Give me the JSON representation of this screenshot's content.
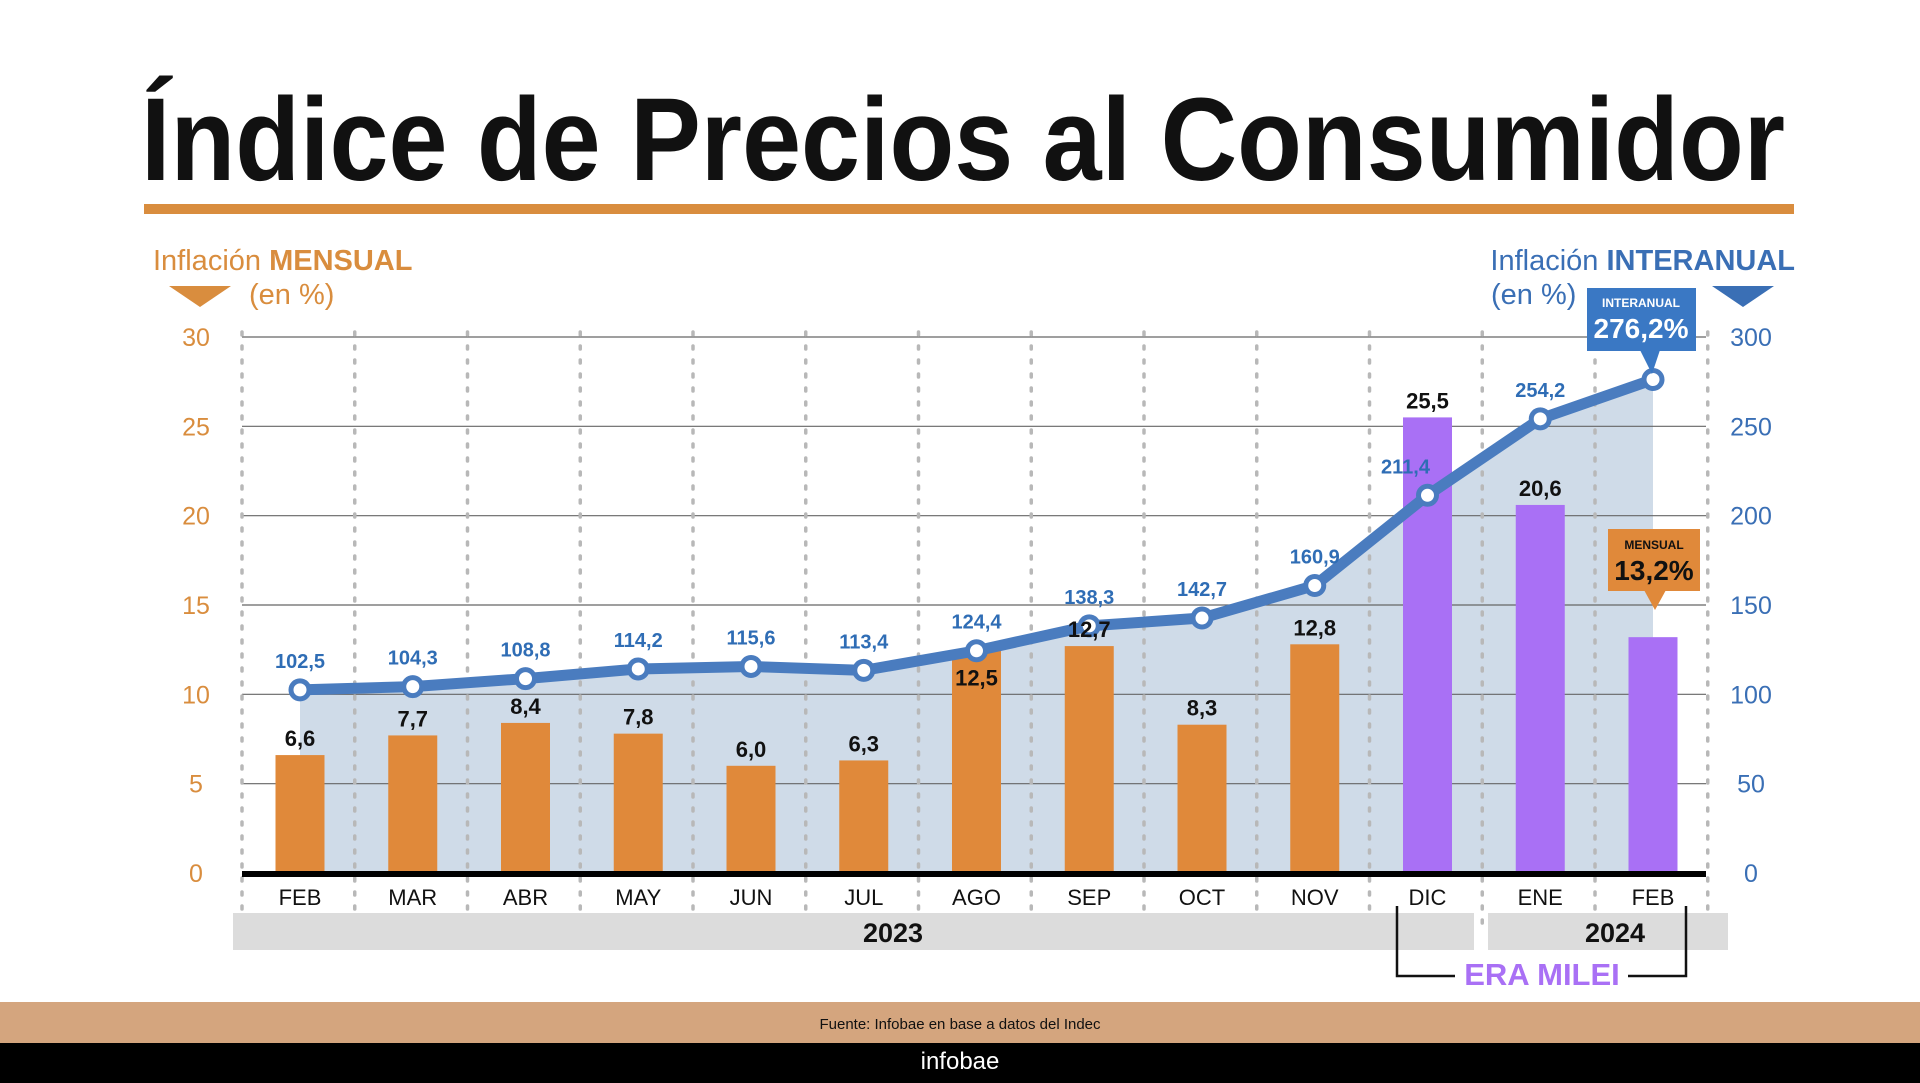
{
  "title": "Índice de Precios al Consumidor",
  "left_header": {
    "prefix": "Inflación ",
    "bold": "MENSUAL",
    "unit": "(en %)"
  },
  "right_header": {
    "prefix": "Inflación ",
    "bold": "INTERANUAL",
    "unit": "(en %)"
  },
  "callouts": {
    "interanual": {
      "label": "INTERANUAL",
      "value": "276,2%"
    },
    "mensual": {
      "label": "MENSUAL",
      "value": "13,2%"
    }
  },
  "era_label": "ERA MILEI",
  "source": "Fuente: Infobae en base a datos del Indec",
  "brand": "infobae",
  "colors": {
    "bar_pre": "#e0893a",
    "bar_milei": "#a970f5",
    "line": "#4a7cbf",
    "area": "#cfdbe8",
    "line_label": "#2f6db5",
    "left_axis": "#d98d3e",
    "right_axis": "#3a6fb5",
    "title_rule": "#d98d3e",
    "footer_band": "#d4a57e"
  },
  "chart_data": {
    "type": "bar+line",
    "categories": [
      "FEB",
      "MAR",
      "ABR",
      "MAY",
      "JUN",
      "JUL",
      "AGO",
      "SEP",
      "OCT",
      "NOV",
      "DIC",
      "ENE",
      "FEB"
    ],
    "years": [
      {
        "label": "2023",
        "months": 11
      },
      {
        "label": "2024",
        "months": 2
      }
    ],
    "series": [
      {
        "name": "MENSUAL",
        "type": "bar",
        "axis": "left",
        "values": [
          6.6,
          7.7,
          8.4,
          7.8,
          6.0,
          6.3,
          12.5,
          12.7,
          8.3,
          12.8,
          25.5,
          20.6,
          13.2
        ],
        "labels": [
          "6,6",
          "7,7",
          "8,4",
          "7,8",
          "6,0",
          "6,3",
          "12,5",
          "12,7",
          "8,3",
          "12,8",
          "25,5",
          "20,6",
          ""
        ]
      },
      {
        "name": "INTERANUAL",
        "type": "line",
        "axis": "right",
        "values": [
          102.5,
          104.3,
          108.8,
          114.2,
          115.6,
          113.4,
          124.4,
          138.3,
          142.7,
          160.9,
          211.4,
          254.2,
          276.2
        ],
        "labels": [
          "102,5",
          "104,3",
          "108,8",
          "114,2",
          "115,6",
          "113,4",
          "124,4",
          "138,3",
          "142,7",
          "160,9",
          "211,4",
          "254,2",
          ""
        ]
      }
    ],
    "milei_from_index": 10,
    "left_axis": {
      "ylim": [
        0,
        30
      ],
      "ticks": [
        "0",
        "5",
        "10",
        "15",
        "20",
        "25",
        "30"
      ]
    },
    "right_axis": {
      "ylim": [
        0,
        300
      ],
      "ticks": [
        "0",
        "50",
        "100",
        "150",
        "200",
        "250",
        "300"
      ]
    },
    "grid": true
  }
}
